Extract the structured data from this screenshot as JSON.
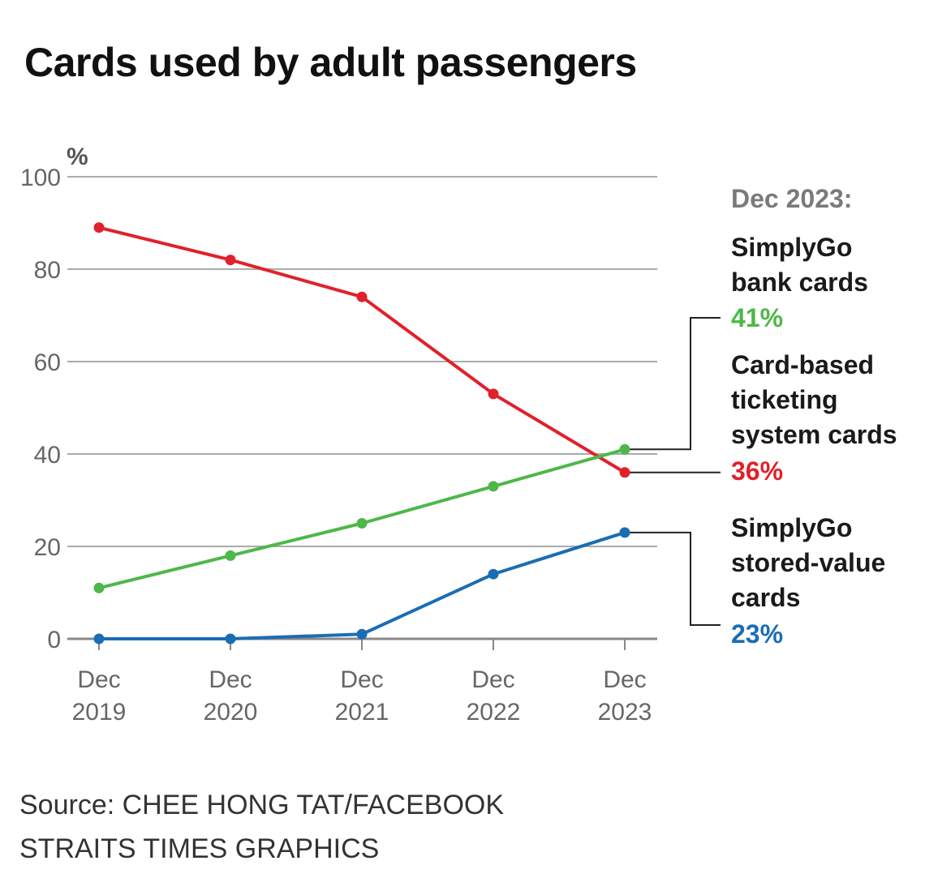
{
  "chart_data": {
    "type": "line",
    "title": "Cards used by adult passengers",
    "ylabel": "%",
    "ylim": [
      0,
      100
    ],
    "yticks": [
      0,
      20,
      40,
      60,
      80,
      100
    ],
    "grid": true,
    "categories": [
      [
        "Dec",
        "2019"
      ],
      [
        "Dec",
        "2020"
      ],
      [
        "Dec",
        "2021"
      ],
      [
        "Dec",
        "2022"
      ],
      [
        "Dec",
        "2023"
      ]
    ],
    "series": [
      {
        "name": "Card-based ticketing system cards",
        "color": "#e0212b",
        "values": [
          89,
          82,
          74,
          53,
          36
        ],
        "label": "36%"
      },
      {
        "name": "SimplyGo bank cards",
        "color": "#4db848",
        "values": [
          11,
          18,
          25,
          33,
          41
        ],
        "label": "41%"
      },
      {
        "name": "SimplyGo stored-value cards",
        "color": "#1b6db3",
        "values": [
          0,
          0,
          1,
          14,
          23
        ],
        "label": "23%"
      }
    ],
    "annotation_header": "Dec 2023:"
  },
  "labels": {
    "bank_name": "SimplyGo bank cards",
    "cbt_name": "Card-based ticketing system cards",
    "sv_name": "SimplyGo stored-value cards"
  },
  "footer": {
    "source": "Source: CHEE HONG TAT/FACEBOOK",
    "credit": "STRAITS TIMES GRAPHICS"
  }
}
